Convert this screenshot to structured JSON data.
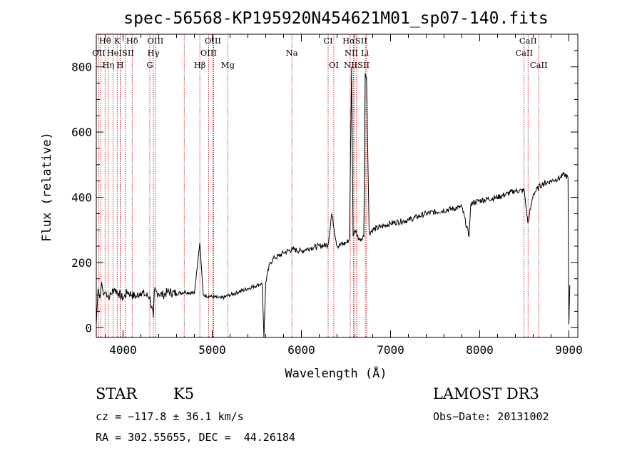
{
  "chart_data": {
    "type": "line",
    "title": "spec-56568-KP195920N454621M01_sp07-140.fits",
    "xlabel": "Wavelength (Å)",
    "ylabel": "Flux (relative)",
    "xlim": [
      3700,
      9100
    ],
    "ylim": [
      -30,
      900
    ],
    "x_ticks": [
      4000,
      5000,
      6000,
      7000,
      8000,
      9000
    ],
    "y_ticks": [
      0,
      200,
      400,
      600,
      800
    ],
    "grid": false,
    "series": [
      {
        "x": [
          3700,
          3720,
          3740,
          3760,
          3780,
          3800,
          3850,
          3900,
          3950,
          4000,
          4050,
          4100,
          4150,
          4200,
          4250,
          4300,
          4340,
          4350,
          4400,
          4450,
          4500,
          4600,
          4700,
          4800,
          4861,
          4900,
          5000,
          5100,
          5200,
          5300,
          5400,
          5500,
          5560,
          5580,
          5600,
          5650,
          5700,
          5750,
          5800,
          5900,
          6000,
          6100,
          6200,
          6300,
          6340,
          6400,
          6500,
          6540,
          6563,
          6580,
          6600,
          6650,
          6700,
          6716,
          6731,
          6760,
          6800,
          6900,
          7000,
          7200,
          7400,
          7600,
          7800,
          7880,
          7900,
          8000,
          8200,
          8400,
          8500,
          8540,
          8600,
          8662,
          8700,
          8800,
          8900,
          8950,
          8990,
          9000,
          9010
        ],
        "y": [
          10,
          120,
          90,
          140,
          100,
          110,
          95,
          120,
          105,
          90,
          110,
          100,
          95,
          110,
          100,
          95,
          30,
          110,
          105,
          100,
          110,
          105,
          110,
          105,
          260,
          100,
          95,
          90,
          100,
          110,
          120,
          130,
          135,
          -30,
          140,
          200,
          215,
          220,
          230,
          240,
          235,
          245,
          250,
          255,
          350,
          250,
          260,
          270,
          800,
          280,
          300,
          270,
          280,
          780,
          760,
          290,
          300,
          310,
          320,
          330,
          350,
          360,
          370,
          280,
          380,
          390,
          400,
          420,
          420,
          320,
          410,
          430,
          440,
          450,
          460,
          470,
          460,
          10,
          130
        ]
      }
    ],
    "lines": [
      {
        "label": "Hθ",
        "x": 3798,
        "row": 0
      },
      {
        "label": "K",
        "x": 3934,
        "row": 0
      },
      {
        "label": "Hδ",
        "x": 4102,
        "row": 0
      },
      {
        "label": "OIII",
        "x": 4363,
        "row": 0
      },
      {
        "label": "OIII",
        "x": 5007,
        "row": 0
      },
      {
        "label": "CI",
        "x": 6300,
        "row": 0
      },
      {
        "label": "HαSII",
        "x": 6600,
        "row": 0
      },
      {
        "label": "CaII",
        "x": 8542,
        "row": 0
      },
      {
        "label": "OII",
        "x": 3727,
        "row": 1
      },
      {
        "label": "HeISII",
        "x": 3970,
        "row": 1
      },
      {
        "label": "Hγ",
        "x": 4340,
        "row": 1
      },
      {
        "label": "OIII",
        "x": 4959,
        "row": 1
      },
      {
        "label": "Na",
        "x": 5893,
        "row": 1
      },
      {
        "label": "NII Li",
        "x": 6620,
        "row": 1
      },
      {
        "label": "CaII",
        "x": 8498,
        "row": 1
      },
      {
        "label": "Hη",
        "x": 3835,
        "row": 2
      },
      {
        "label": "H",
        "x": 3968,
        "row": 2
      },
      {
        "label": "G",
        "x": 4300,
        "row": 2
      },
      {
        "label": "Hβ",
        "x": 4861,
        "row": 2
      },
      {
        "label": "Mg",
        "x": 5175,
        "row": 2
      },
      {
        "label": "OI",
        "x": 6364,
        "row": 2
      },
      {
        "label": "NIISII",
        "x": 6620,
        "row": 2
      },
      {
        "label": "CaII",
        "x": 8662,
        "row": 2
      }
    ],
    "extra_lines": [
      3750,
      3889,
      4026,
      4686,
      5015,
      6548,
      6583,
      6717,
      6731
    ],
    "line_color": "#b30000"
  },
  "info": {
    "class": "STAR",
    "subclass": "K5",
    "survey": "LAMOST DR3",
    "cz": "cz = −117.8 ± 36.1 km/s",
    "obsdate": "Obs−Date: 20131002",
    "radec": "RA = 302.55655, DEC =  44.26184"
  }
}
